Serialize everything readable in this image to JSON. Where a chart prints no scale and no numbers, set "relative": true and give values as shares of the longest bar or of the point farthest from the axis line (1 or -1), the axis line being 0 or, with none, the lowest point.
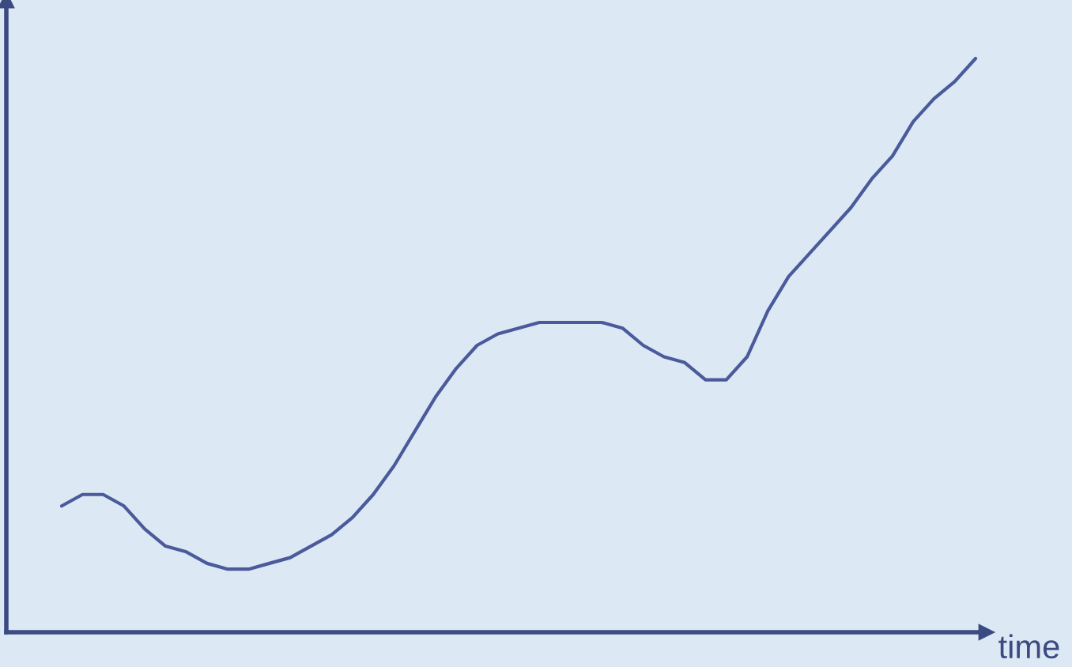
{
  "chart_data": {
    "type": "line",
    "xlabel": "time",
    "relative": true,
    "categories": [
      null,
      null,
      null,
      null,
      null,
      null,
      null,
      null,
      null,
      null,
      null,
      null,
      null,
      null,
      null,
      null,
      null,
      null,
      null,
      null,
      null,
      null,
      null,
      null,
      null,
      null,
      null,
      null,
      null,
      null,
      null,
      null,
      null,
      null,
      null,
      null,
      null,
      null,
      null,
      null,
      null,
      null,
      null,
      null,
      null
    ],
    "series": [
      {
        "color": "#4a5a9a",
        "values": [
          0.22,
          0.24,
          0.24,
          0.22,
          0.18,
          0.15,
          0.14,
          0.12,
          0.11,
          0.11,
          0.12,
          0.13,
          0.15,
          0.17,
          0.2,
          0.24,
          0.29,
          0.35,
          0.41,
          0.46,
          0.5,
          0.52,
          0.53,
          0.54,
          0.54,
          0.54,
          0.54,
          0.53,
          0.5,
          0.48,
          0.47,
          0.44,
          0.44,
          0.48,
          0.56,
          0.62,
          0.66,
          0.7,
          0.74,
          0.79,
          0.83,
          0.89,
          0.93,
          0.96,
          1.0
        ]
      }
    ],
    "legend": false
  }
}
